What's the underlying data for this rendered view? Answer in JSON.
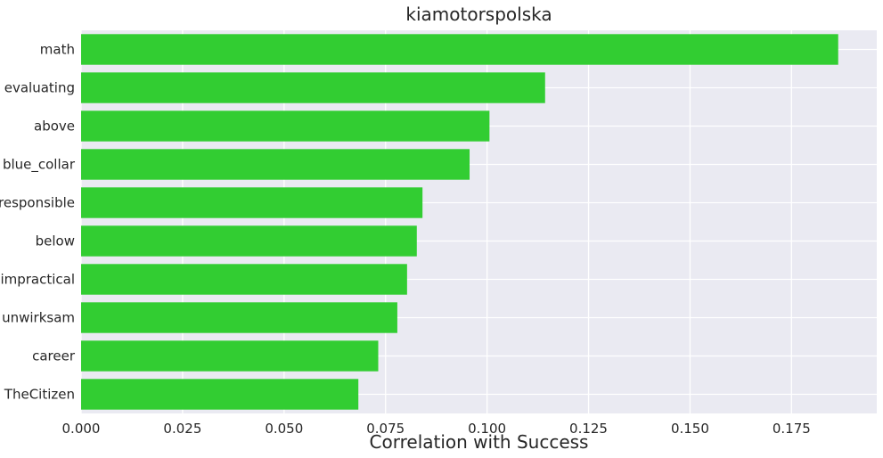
{
  "chart_data": {
    "type": "bar",
    "orientation": "horizontal",
    "title": "kiamotorspolska",
    "xlabel": "Correlation with Success",
    "ylabel": "",
    "categories": [
      "math",
      "evaluating",
      "above",
      "blue_collar",
      "responsible",
      "below",
      "impractical",
      "unwirksam",
      "career",
      "TheCitizen"
    ],
    "values": [
      0.1865,
      0.1143,
      0.1006,
      0.0957,
      0.0841,
      0.0827,
      0.0803,
      0.0779,
      0.0732,
      0.0683
    ],
    "xlim": [
      0,
      0.196
    ],
    "xticks": [
      "0.000",
      "0.025",
      "0.050",
      "0.075",
      "0.100",
      "0.125",
      "0.150",
      "0.175"
    ],
    "grid": true,
    "bar_color": "#32cd32",
    "background_color": "#eaeaf2"
  }
}
